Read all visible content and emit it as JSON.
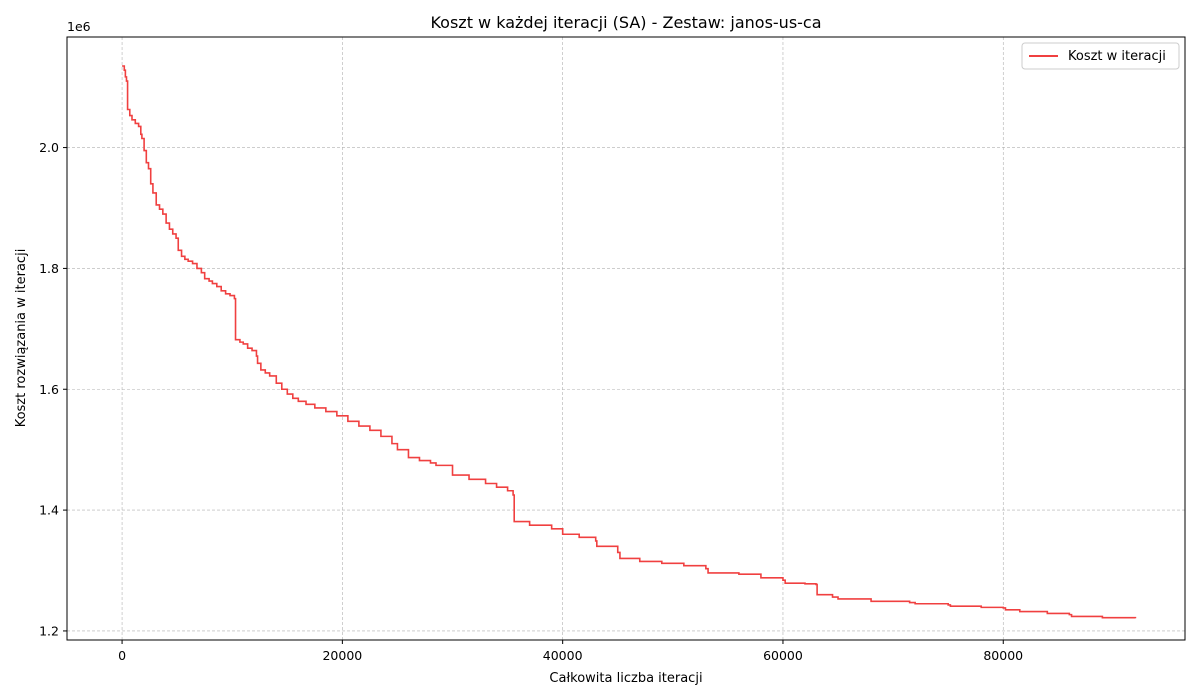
{
  "chart_data": {
    "type": "line",
    "title": "Koszt w każdej iteracji (SA) - Zestaw: janos-us-ca",
    "xlabel": "Całkowita liczba iteracji",
    "ylabel": "Koszt rozwiązania w iteracji",
    "y_offset_label": "1e6",
    "xlim": [
      -5000,
      96500
    ],
    "ylim": [
      1.185,
      2.183
    ],
    "x_ticks": [
      0,
      20000,
      40000,
      60000,
      80000
    ],
    "y_ticks": [
      1.2,
      1.4,
      1.6,
      1.8,
      2.0
    ],
    "y_tick_labels": [
      "1.2",
      "1.4",
      "1.6",
      "1.8",
      "2.0"
    ],
    "grid": true,
    "legend_position": "top-right",
    "series": [
      {
        "name": "Koszt w iteracji",
        "color": "#f04040",
        "x": [
          0,
          200,
          300,
          400,
          500,
          700,
          900,
          1200,
          1500,
          1700,
          1800,
          2000,
          2200,
          2400,
          2600,
          2800,
          3100,
          3400,
          3700,
          4000,
          4300,
          4600,
          4900,
          5100,
          5400,
          5700,
          6000,
          6400,
          6800,
          7200,
          7500,
          7900,
          8200,
          8600,
          9000,
          9400,
          9800,
          10200,
          10300,
          10700,
          11000,
          11400,
          11800,
          12200,
          12300,
          12600,
          13000,
          13400,
          14000,
          14500,
          15000,
          15500,
          16000,
          16700,
          17500,
          18500,
          19500,
          20500,
          21500,
          22500,
          23500,
          24500,
          25000,
          26000,
          27000,
          28000,
          28500,
          30000,
          31500,
          33000,
          34000,
          35000,
          35500,
          35600,
          37000,
          39000,
          40000,
          41500,
          43000,
          43100,
          45000,
          45200,
          47000,
          49000,
          51000,
          53000,
          53200,
          56000,
          58000,
          60000,
          60200,
          62000,
          63000,
          63100,
          64500,
          65000,
          68000,
          71500,
          72000,
          75000,
          75200,
          78000,
          80000,
          80200,
          81500,
          84000,
          86000,
          86200,
          89000,
          92000
        ],
        "y": [
          2.135,
          2.128,
          2.117,
          2.11,
          2.063,
          2.053,
          2.046,
          2.04,
          2.035,
          2.022,
          2.015,
          1.995,
          1.975,
          1.965,
          1.94,
          1.925,
          1.905,
          1.898,
          1.89,
          1.875,
          1.865,
          1.857,
          1.85,
          1.83,
          1.82,
          1.815,
          1.812,
          1.808,
          1.8,
          1.793,
          1.783,
          1.779,
          1.775,
          1.77,
          1.763,
          1.758,
          1.755,
          1.75,
          1.682,
          1.678,
          1.675,
          1.668,
          1.664,
          1.655,
          1.643,
          1.632,
          1.627,
          1.622,
          1.61,
          1.6,
          1.592,
          1.585,
          1.58,
          1.575,
          1.569,
          1.563,
          1.556,
          1.547,
          1.539,
          1.532,
          1.522,
          1.51,
          1.5,
          1.487,
          1.482,
          1.478,
          1.474,
          1.458,
          1.451,
          1.444,
          1.438,
          1.432,
          1.425,
          1.381,
          1.375,
          1.369,
          1.36,
          1.355,
          1.349,
          1.34,
          1.33,
          1.32,
          1.315,
          1.312,
          1.308,
          1.303,
          1.296,
          1.294,
          1.288,
          1.284,
          1.279,
          1.278,
          1.277,
          1.26,
          1.256,
          1.253,
          1.249,
          1.247,
          1.245,
          1.243,
          1.241,
          1.239,
          1.238,
          1.235,
          1.232,
          1.229,
          1.227,
          1.224,
          1.222,
          1.221
        ]
      }
    ]
  }
}
